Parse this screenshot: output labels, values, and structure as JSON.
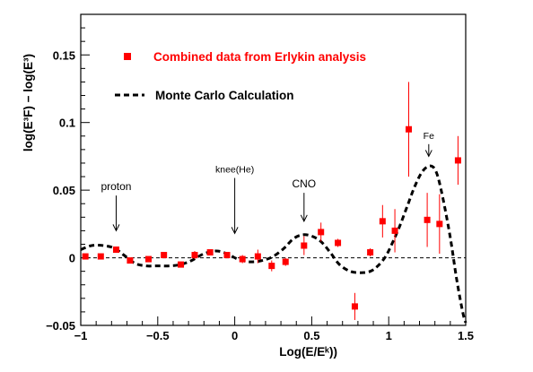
{
  "chart_data": {
    "type": "scatter",
    "xlabel": "Log(E/Eᵏ))",
    "ylabel": "log(E³F) − log(E³)",
    "xlim": [
      -1.0,
      1.5
    ],
    "ylim": [
      -0.05,
      0.18
    ],
    "x_ticks": [
      -1,
      -0.5,
      0,
      0.5,
      1,
      1.5
    ],
    "x_tick_labels": [
      "−1",
      "−0.5",
      "0",
      "0.5",
      "1",
      "1.5"
    ],
    "y_ticks": [
      -0.05,
      0,
      0.05,
      0.1,
      0.15
    ],
    "y_tick_labels": [
      "−0.05",
      "0",
      "0.05",
      "0.1",
      "0.15"
    ],
    "grid": false,
    "legend_position": "top-left",
    "colors": {
      "data": "#ff0000",
      "curve": "#000000"
    },
    "series": [
      {
        "name": "Combined data from Erlykin analysis",
        "kind": "points",
        "points": [
          {
            "x": -0.97,
            "y": 0.001,
            "err": 0.002
          },
          {
            "x": -0.87,
            "y": 0.001,
            "err": 0.002
          },
          {
            "x": -0.77,
            "y": 0.006,
            "err": 0.002
          },
          {
            "x": -0.68,
            "y": -0.002,
            "err": 0.002
          },
          {
            "x": -0.56,
            "y": -0.001,
            "err": 0.002
          },
          {
            "x": -0.46,
            "y": 0.002,
            "err": 0.002
          },
          {
            "x": -0.35,
            "y": -0.005,
            "err": 0.002
          },
          {
            "x": -0.26,
            "y": 0.002,
            "err": 0.003
          },
          {
            "x": -0.16,
            "y": 0.004,
            "err": 0.002
          },
          {
            "x": -0.05,
            "y": 0.002,
            "err": 0.002
          },
          {
            "x": 0.05,
            "y": -0.001,
            "err": 0.003
          },
          {
            "x": 0.15,
            "y": 0.001,
            "err": 0.005
          },
          {
            "x": 0.24,
            "y": -0.006,
            "err": 0.004
          },
          {
            "x": 0.33,
            "y": -0.003,
            "err": 0.003
          },
          {
            "x": 0.45,
            "y": 0.009,
            "err": 0.007
          },
          {
            "x": 0.56,
            "y": 0.019,
            "err": 0.007
          },
          {
            "x": 0.67,
            "y": 0.011,
            "err": 0.003
          },
          {
            "x": 0.78,
            "y": -0.036,
            "err": 0.01
          },
          {
            "x": 0.88,
            "y": 0.004,
            "err": 0.003
          },
          {
            "x": 0.96,
            "y": 0.027,
            "err": 0.012
          },
          {
            "x": 1.04,
            "y": 0.02,
            "err": 0.016
          },
          {
            "x": 1.13,
            "y": 0.095,
            "err": 0.035
          },
          {
            "x": 1.25,
            "y": 0.028,
            "err": 0.02
          },
          {
            "x": 1.33,
            "y": 0.025,
            "err": 0.022
          },
          {
            "x": 1.45,
            "y": 0.072,
            "err": 0.018
          }
        ]
      },
      {
        "name": "Monte Carlo Calculation",
        "kind": "dashed-line",
        "x": [
          -1.0,
          -0.93,
          -0.85,
          -0.78,
          -0.72,
          -0.65,
          -0.58,
          -0.5,
          -0.42,
          -0.35,
          -0.28,
          -0.2,
          -0.12,
          -0.05,
          0.02,
          0.1,
          0.18,
          0.25,
          0.32,
          0.38,
          0.44,
          0.5,
          0.56,
          0.62,
          0.68,
          0.75,
          0.82,
          0.88,
          0.93,
          0.98,
          1.02,
          1.07,
          1.12,
          1.17,
          1.22,
          1.27,
          1.31,
          1.35,
          1.4,
          1.44,
          1.48,
          1.5
        ],
        "y": [
          0.006,
          0.009,
          0.009,
          0.007,
          0.002,
          -0.004,
          -0.006,
          -0.006,
          -0.006,
          -0.005,
          -0.002,
          0.003,
          0.005,
          0.003,
          -0.001,
          -0.003,
          -0.002,
          0.001,
          0.007,
          0.014,
          0.017,
          0.016,
          0.012,
          0.004,
          -0.005,
          -0.01,
          -0.011,
          -0.01,
          -0.006,
          0.001,
          0.01,
          0.023,
          0.038,
          0.053,
          0.064,
          0.068,
          0.063,
          0.045,
          0.015,
          -0.015,
          -0.04,
          -0.048
        ]
      },
      {
        "name": "",
        "kind": "reference-line",
        "x": [
          -1.0,
          1.5
        ],
        "y": [
          0,
          0
        ]
      }
    ],
    "legend": [
      {
        "label": "Combined data from Erlykin analysis",
        "marker": "square",
        "color": "#ff0000"
      },
      {
        "label": "Monte Carlo Calculation",
        "marker": "dashed-line",
        "color": "#000000"
      }
    ],
    "annotations": [
      {
        "text": "proton",
        "x": -0.77,
        "y": 0.05,
        "arrow_to_y": 0.02,
        "font": "normal"
      },
      {
        "text": "knee(He)",
        "x": 0.0,
        "y": 0.063,
        "arrow_to_y": 0.018,
        "font": "small"
      },
      {
        "text": "CNO",
        "x": 0.45,
        "y": 0.052,
        "arrow_to_y": 0.027,
        "font": "normal"
      },
      {
        "text": "Fe",
        "x": 1.26,
        "y": 0.088,
        "arrow_to_y": 0.075,
        "font": "small"
      }
    ]
  }
}
